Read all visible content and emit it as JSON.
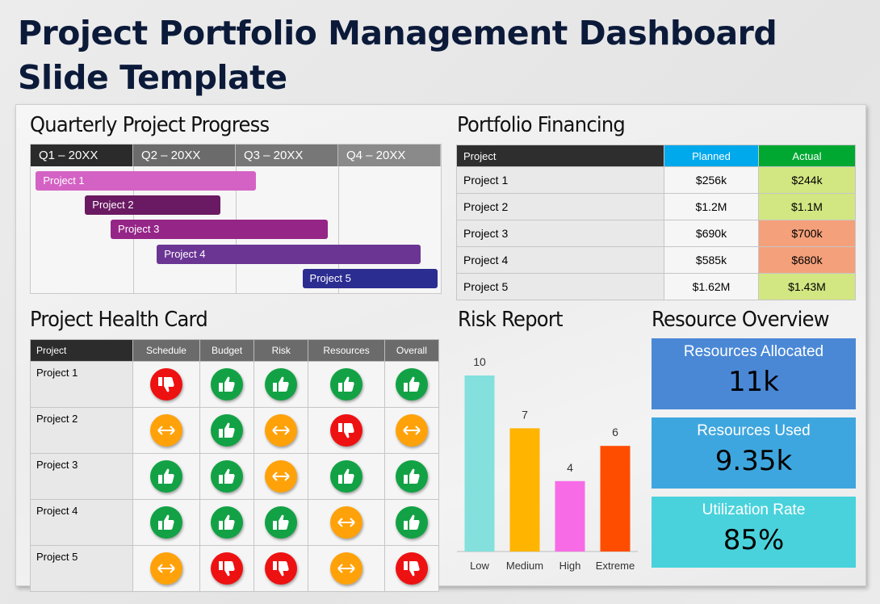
{
  "title": "Project Portfolio Management Dashboard Slide Template",
  "quarterly": {
    "title": "Quarterly Project Progress",
    "quarters": [
      "Q1 – 20XX",
      "Q2 – 20XX",
      "Q3 – 20XX",
      "Q4 – 20XX"
    ],
    "quarter_colors": [
      "#2b2b2b",
      "#6b6b6b",
      "#777777",
      "#8a8a8a"
    ],
    "projects": [
      {
        "label": "Project 1",
        "start_q": 0.05,
        "end_q": 2.2,
        "color": "#d462c4"
      },
      {
        "label": "Project 2",
        "start_q": 0.53,
        "end_q": 1.85,
        "color": "#6a1a62"
      },
      {
        "label": "Project 3",
        "start_q": 0.78,
        "end_q": 2.9,
        "color": "#952587"
      },
      {
        "label": "Project 4",
        "start_q": 1.23,
        "end_q": 3.8,
        "color": "#6b3594"
      },
      {
        "label": "Project 5",
        "start_q": 2.65,
        "end_q": 3.97,
        "color": "#2c2d91"
      }
    ]
  },
  "financing": {
    "title": "Portfolio Financing",
    "headers": {
      "project": "Project",
      "planned": "Planned",
      "actual": "Actual"
    },
    "header_colors": {
      "project": "#2e2e2e",
      "planned": "#00a8ec",
      "actual": "#00a832"
    },
    "rows": [
      {
        "project": "Project 1",
        "planned": "$256k",
        "actual": "$244k",
        "status": "under"
      },
      {
        "project": "Project 2",
        "planned": "$1.2M",
        "actual": "$1.1M",
        "status": "under"
      },
      {
        "project": "Project 3",
        "planned": "$690k",
        "actual": "$700k",
        "status": "over"
      },
      {
        "project": "Project 4",
        "planned": "$585k",
        "actual": "$680k",
        "status": "over"
      },
      {
        "project": "Project 5",
        "planned": "$1.62M",
        "actual": "$1.43M",
        "status": "under"
      }
    ],
    "status_colors": {
      "under": "#d2e682",
      "over": "#f4a07a"
    }
  },
  "health": {
    "title": "Project Health Card",
    "headers": [
      "Project",
      "Schedule",
      "Budget",
      "Risk",
      "Resources",
      "Overall"
    ],
    "rows": [
      {
        "project": "Project 1",
        "status": [
          "down",
          "up",
          "up",
          "up",
          "up"
        ]
      },
      {
        "project": "Project 2",
        "status": [
          "neutral",
          "up",
          "neutral",
          "down",
          "neutral"
        ]
      },
      {
        "project": "Project 3",
        "status": [
          "up",
          "up",
          "neutral",
          "up",
          "up"
        ]
      },
      {
        "project": "Project 4",
        "status": [
          "up",
          "up",
          "up",
          "neutral",
          "up"
        ]
      },
      {
        "project": "Project 5",
        "status": [
          "neutral",
          "down",
          "down",
          "neutral",
          "down"
        ]
      }
    ],
    "icons": {
      "up": "thumbs-up-icon",
      "down": "thumbs-down-icon",
      "neutral": "double-arrow-icon"
    },
    "icon_colors": {
      "up": "#12a245",
      "down": "#ee1111",
      "neutral": "#ffa20a"
    }
  },
  "risk": {
    "title": "Risk Report"
  },
  "chart_data": {
    "type": "bar",
    "title": "Risk Report",
    "categories": [
      "Low",
      "Medium",
      "High",
      "Extreme"
    ],
    "values": [
      10,
      7,
      4,
      6
    ],
    "colors": [
      "#83e0dc",
      "#ffb400",
      "#f76be6",
      "#ff4d00"
    ],
    "xlabel": "",
    "ylabel": "",
    "ylim": [
      0,
      10
    ],
    "grid": false
  },
  "resources": {
    "title": "Resource Overview",
    "cards": [
      {
        "label": "Resources Allocated",
        "value": "11k",
        "color": "#4a88d6"
      },
      {
        "label": "Resources Used",
        "value": "9.35k",
        "color": "#3ea6de"
      },
      {
        "label": "Utilization Rate",
        "value": "85%",
        "color": "#4ad2dc"
      }
    ]
  }
}
